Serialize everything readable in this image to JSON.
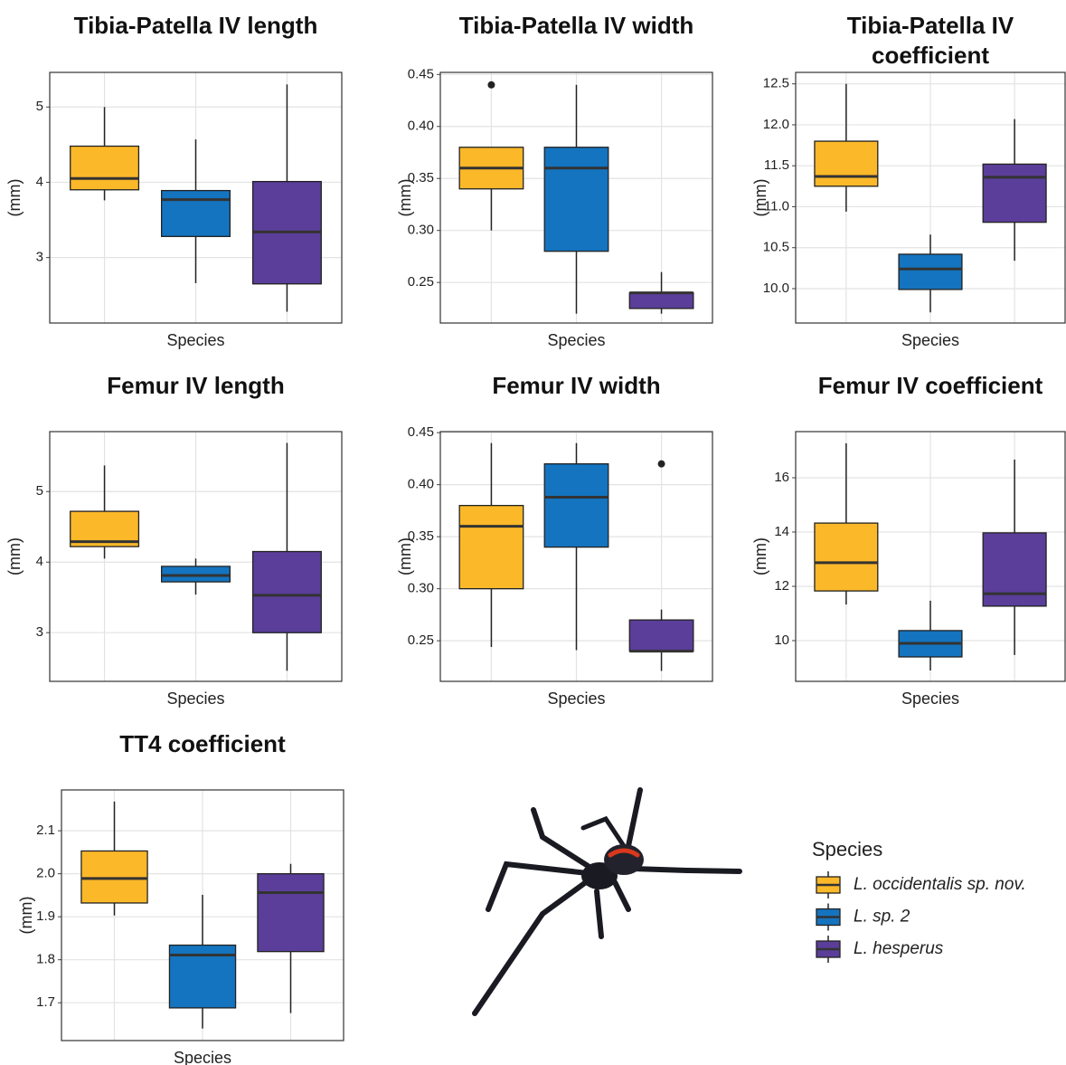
{
  "chart_data": [
    {
      "type": "box",
      "title": "Tibia-Patella IV length",
      "ylabel": "(mm)",
      "xlabel": "Species",
      "grid": true,
      "ylim": [
        2.13,
        5.46
      ],
      "yticks": [
        3,
        4,
        5
      ],
      "boxes": [
        {
          "min": 3.76,
          "q1": 3.9,
          "median": 4.05,
          "q3": 4.48,
          "max": 5.0,
          "outliers": []
        },
        {
          "min": 2.66,
          "q1": 3.28,
          "median": 3.77,
          "q3": 3.89,
          "max": 4.57,
          "outliers": []
        },
        {
          "min": 2.28,
          "q1": 2.65,
          "median": 3.34,
          "q3": 4.01,
          "max": 5.3,
          "outliers": []
        }
      ]
    },
    {
      "type": "box",
      "title": "Tibia-Patella IV width",
      "ylabel": "(mm)",
      "xlabel": "Species",
      "grid": true,
      "ylim": [
        0.211,
        0.452
      ],
      "yticks": [
        {
          "value": 0.25,
          "label": "0.25"
        },
        {
          "value": 0.3,
          "label": "0.30"
        },
        {
          "value": 0.35,
          "label": "0.35"
        },
        {
          "value": 0.4,
          "label": "0.40"
        },
        {
          "value": 0.45,
          "label": "0.45"
        }
      ],
      "boxes": [
        {
          "min": 0.3,
          "q1": 0.34,
          "median": 0.36,
          "q3": 0.38,
          "max": 0.38,
          "outliers": [
            0.44
          ]
        },
        {
          "min": 0.22,
          "q1": 0.28,
          "median": 0.36,
          "q3": 0.38,
          "max": 0.44,
          "outliers": []
        },
        {
          "min": 0.22,
          "q1": 0.225,
          "median": 0.24,
          "q3": 0.24,
          "max": 0.26,
          "outliers": []
        }
      ]
    },
    {
      "type": "box",
      "title": "Tibia-Patella IV coefficient",
      "ylabel": "(mm)",
      "xlabel": "Species",
      "grid": true,
      "ylim": [
        9.58,
        12.64
      ],
      "yticks": [
        {
          "value": 10,
          "label": "10.0"
        },
        10.5,
        {
          "value": 11,
          "label": "11.0"
        },
        11.5,
        {
          "value": 12,
          "label": "12.0"
        },
        12.5
      ],
      "boxes": [
        {
          "min": 10.94,
          "q1": 11.25,
          "median": 11.37,
          "q3": 11.8,
          "max": 12.5,
          "outliers": []
        },
        {
          "min": 9.71,
          "q1": 9.99,
          "median": 10.24,
          "q3": 10.42,
          "max": 10.66,
          "outliers": []
        },
        {
          "min": 10.34,
          "q1": 10.81,
          "median": 11.36,
          "q3": 11.52,
          "max": 12.07,
          "outliers": []
        }
      ]
    },
    {
      "type": "box",
      "title": "Femur IV length",
      "ylabel": "(mm)",
      "xlabel": "Species",
      "grid": true,
      "ylim": [
        2.31,
        5.85
      ],
      "yticks": [
        3,
        4,
        5
      ],
      "boxes": [
        {
          "min": 4.05,
          "q1": 4.22,
          "median": 4.29,
          "q3": 4.72,
          "max": 5.37,
          "outliers": []
        },
        {
          "min": 3.54,
          "q1": 3.72,
          "median": 3.81,
          "q3": 3.94,
          "max": 4.05,
          "outliers": []
        },
        {
          "min": 2.46,
          "q1": 3.0,
          "median": 3.53,
          "q3": 4.15,
          "max": 5.69,
          "outliers": []
        }
      ]
    },
    {
      "type": "box",
      "title": "Femur IV width",
      "ylabel": "(mm)",
      "xlabel": "Species",
      "grid": true,
      "ylim": [
        0.211,
        0.451
      ],
      "yticks": [
        {
          "value": 0.25,
          "label": "0.25"
        },
        {
          "value": 0.3,
          "label": "0.30"
        },
        {
          "value": 0.35,
          "label": "0.35"
        },
        {
          "value": 0.4,
          "label": "0.40"
        },
        {
          "value": 0.45,
          "label": "0.45"
        }
      ],
      "boxes": [
        {
          "min": 0.244,
          "q1": 0.3,
          "median": 0.36,
          "q3": 0.38,
          "max": 0.44,
          "outliers": []
        },
        {
          "min": 0.241,
          "q1": 0.34,
          "median": 0.388,
          "q3": 0.42,
          "max": 0.44,
          "outliers": []
        },
        {
          "min": 0.221,
          "q1": 0.24,
          "median": 0.24,
          "q3": 0.27,
          "max": 0.28,
          "outliers": [
            0.42
          ]
        }
      ]
    },
    {
      "type": "box",
      "title": "Femur IV coefficient",
      "ylabel": "(mm)",
      "xlabel": "Species",
      "grid": true,
      "ylim": [
        8.5,
        17.7
      ],
      "yticks": [
        10,
        12,
        14,
        16
      ],
      "boxes": [
        {
          "min": 11.33,
          "q1": 11.83,
          "median": 12.87,
          "q3": 14.33,
          "max": 17.27,
          "outliers": []
        },
        {
          "min": 8.9,
          "q1": 9.4,
          "median": 9.9,
          "q3": 10.37,
          "max": 11.47,
          "outliers": []
        },
        {
          "min": 9.47,
          "q1": 11.27,
          "median": 11.73,
          "q3": 13.97,
          "max": 16.67,
          "outliers": []
        }
      ]
    },
    {
      "type": "box",
      "title": "TT4 coefficient",
      "ylabel": "(mm)",
      "xlabel": "Species",
      "grid": true,
      "ylim": [
        1.612,
        2.195
      ],
      "yticks": [
        1.7,
        1.8,
        1.9,
        {
          "value": 2,
          "label": "2.0"
        },
        2.1
      ],
      "boxes": [
        {
          "min": 1.903,
          "q1": 1.932,
          "median": 1.989,
          "q3": 2.053,
          "max": 2.168,
          "outliers": []
        },
        {
          "min": 1.64,
          "q1": 1.688,
          "median": 1.811,
          "q3": 1.834,
          "max": 1.951,
          "outliers": []
        },
        {
          "min": 1.676,
          "q1": 1.819,
          "median": 1.956,
          "q3": 2.0,
          "max": 2.023,
          "outliers": []
        }
      ]
    }
  ],
  "legend": {
    "title": "Species",
    "items": [
      {
        "name": "L. occidentalis sp. nov.",
        "color": "#fbb829"
      },
      {
        "name": "L. sp. 2",
        "color": "#1474bf"
      },
      {
        "name": "L. hesperus",
        "color": "#5a3e99"
      }
    ]
  }
}
